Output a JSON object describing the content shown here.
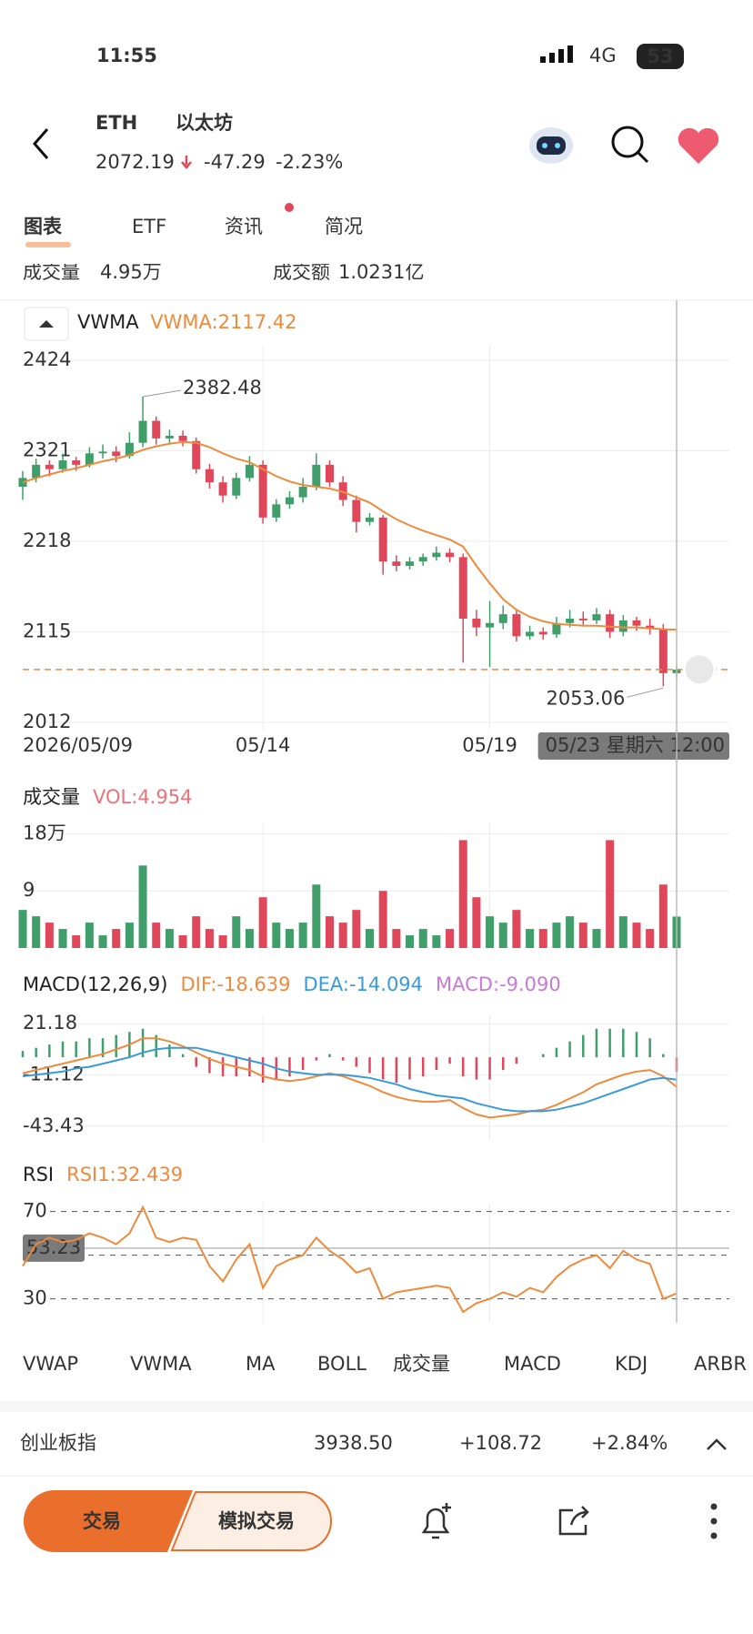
{
  "status_bar": {
    "time": "11:55",
    "network": "4G",
    "battery": "53"
  },
  "header": {
    "symbol": "ETH",
    "name": "以太坊",
    "price": 2072.19,
    "change": -47.29,
    "change_pct": "-2.23%"
  },
  "tabs": [
    "图表",
    "ETF",
    "资讯",
    "简况"
  ],
  "stats": [
    {
      "label": "成交量",
      "value": "4.95万"
    },
    {
      "label": "成交额",
      "value": "1.0231亿"
    }
  ],
  "chart_data": [
    {
      "type": "candlestick",
      "title": "VWMA",
      "up_color": "#3f9e6a",
      "down_color": "#e0475a",
      "categories": [
        "2026/05/09",
        null,
        null,
        null,
        null,
        null,
        null,
        null,
        null,
        null,
        null,
        null,
        null,
        null,
        null,
        null,
        null,
        null,
        "05/14",
        null,
        null,
        null,
        null,
        null,
        null,
        null,
        null,
        null,
        null,
        null,
        null,
        null,
        null,
        null,
        null,
        "05/19",
        null,
        null,
        null,
        null,
        null,
        null,
        null,
        null,
        null,
        null,
        null,
        null,
        null,
        null
      ],
      "open": [
        2280,
        2290,
        2305,
        2300,
        2310,
        2305,
        2318,
        2320,
        2315,
        2330,
        2355,
        2335,
        2338,
        2332,
        2300,
        2285,
        2270,
        2290,
        2305,
        2245,
        2260,
        2268,
        2280,
        2305,
        2285,
        2265,
        2240,
        2245,
        2195,
        2190,
        2195,
        2200,
        2205,
        2200,
        2130,
        2120,
        2125,
        2135,
        2110,
        2115,
        2112,
        2125,
        2130,
        2128,
        2135,
        2115,
        2128,
        2122,
        2118,
        2068
      ],
      "high": [
        2298,
        2312,
        2310,
        2318,
        2314,
        2325,
        2328,
        2326,
        2342,
        2382.48,
        2360,
        2345,
        2344,
        2336,
        2306,
        2292,
        2296,
        2315,
        2310,
        2266,
        2275,
        2290,
        2318,
        2310,
        2292,
        2270,
        2250,
        2248,
        2202,
        2200,
        2204,
        2212,
        2210,
        2204,
        2140,
        2150,
        2145,
        2140,
        2122,
        2120,
        2132,
        2140,
        2138,
        2142,
        2140,
        2134,
        2132,
        2130,
        2124,
        2076
      ],
      "low": [
        2265,
        2285,
        2292,
        2296,
        2298,
        2302,
        2312,
        2308,
        2312,
        2325,
        2328,
        2330,
        2326,
        2295,
        2278,
        2262,
        2266,
        2286,
        2238,
        2240,
        2255,
        2262,
        2276,
        2280,
        2258,
        2228,
        2236,
        2180,
        2184,
        2186,
        2190,
        2196,
        2194,
        2080,
        2110,
        2075,
        2118,
        2104,
        2106,
        2106,
        2108,
        2120,
        2122,
        2124,
        2108,
        2110,
        2116,
        2112,
        2053.06,
        2062
      ],
      "close": [
        2290,
        2305,
        2300,
        2310,
        2305,
        2318,
        2320,
        2315,
        2330,
        2355,
        2335,
        2338,
        2332,
        2300,
        2285,
        2270,
        2290,
        2305,
        2245,
        2260,
        2268,
        2280,
        2305,
        2285,
        2265,
        2240,
        2245,
        2195,
        2190,
        2195,
        2200,
        2205,
        2200,
        2130,
        2120,
        2125,
        2135,
        2110,
        2115,
        2112,
        2125,
        2130,
        2128,
        2135,
        2115,
        2128,
        2122,
        2118,
        2068,
        2072
      ],
      "series": [
        {
          "name": "VWMA:",
          "color": "#ee8a3c",
          "values": [
            2285,
            2290,
            2294,
            2298,
            2301,
            2305,
            2309,
            2312,
            2316,
            2322,
            2326,
            2329,
            2331,
            2330,
            2325,
            2318,
            2312,
            2308,
            2300,
            2292,
            2286,
            2282,
            2280,
            2278,
            2274,
            2268,
            2262,
            2252,
            2243,
            2236,
            2230,
            2225,
            2220,
            2212,
            2190,
            2170,
            2152,
            2140,
            2132,
            2127,
            2124,
            2123,
            2122,
            2122,
            2121,
            2120,
            2120,
            2119,
            2118,
            2117.42
          ]
        }
      ],
      "ylim": [
        2003.7,
        2439.4
      ],
      "yticks": [
        2424,
        2321,
        2218,
        2115,
        2012
      ],
      "crosshair_label": "05/23 星期六 12:00"
    },
    {
      "type": "bar",
      "title": "成交量",
      "series": [
        {
          "name": "VOL:",
          "color": "#e8747c",
          "values": [
            6,
            5,
            4,
            3,
            2,
            4,
            2,
            3,
            4,
            13,
            4,
            3,
            2,
            5,
            3,
            2,
            5,
            3,
            8,
            4,
            3,
            4,
            10,
            5,
            4,
            6,
            3,
            9,
            3,
            2,
            3,
            2,
            3,
            17,
            8,
            5,
            4,
            6,
            3,
            3,
            4,
            5,
            4,
            3,
            17,
            5,
            4,
            3,
            10,
            4.954
          ]
        }
      ],
      "ylim": [
        0,
        19.64
      ],
      "yticks": [
        {
          "value": 18,
          "label": "18万"
        },
        9
      ]
    },
    {
      "type": "macd",
      "title": "MACD(12,26,9)",
      "series": [
        {
          "name": "DIF:",
          "color": "#ee8a3c",
          "values": [
            -10,
            -8,
            -6,
            -4,
            -2,
            0,
            2,
            5,
            8,
            12,
            12,
            10,
            7,
            3,
            -1,
            -4,
            -6,
            -8,
            -12,
            -14,
            -15,
            -14,
            -12,
            -10,
            -12,
            -15,
            -18,
            -22,
            -25,
            -27,
            -28,
            -28,
            -27,
            -32,
            -36,
            -38,
            -37,
            -36,
            -34,
            -33,
            -30,
            -26,
            -22,
            -17,
            -14,
            -11,
            -9,
            -8,
            -12,
            -18.639
          ]
        },
        {
          "name": "DEA:",
          "color": "#3a9ad9",
          "values": [
            -12,
            -11,
            -10,
            -9,
            -7,
            -6,
            -4,
            -2,
            0,
            3,
            5,
            6,
            6,
            6,
            4,
            2,
            0,
            -2,
            -4,
            -7,
            -9,
            -10,
            -11,
            -11,
            -11,
            -12,
            -13,
            -15,
            -17,
            -20,
            -22,
            -24,
            -25,
            -26,
            -29,
            -31,
            -33,
            -34,
            -34,
            -34,
            -33,
            -31,
            -29,
            -26,
            -23,
            -20,
            -17,
            -14,
            -13,
            -14.094
          ]
        },
        {
          "name": "MACD:",
          "color": "#c77bd6",
          "legend_label": "-9.090",
          "values": [
            4,
            6,
            8,
            10,
            10,
            12,
            12,
            14,
            16,
            18,
            14,
            8,
            2,
            -6,
            -10,
            -12,
            -12,
            -12,
            -16,
            -14,
            -12,
            -8,
            -2,
            2,
            -2,
            -6,
            -10,
            -14,
            -16,
            -14,
            -12,
            -8,
            -4,
            -12,
            -14,
            -14,
            -8,
            -4,
            0,
            2,
            6,
            10,
            14,
            18,
            18,
            18,
            16,
            12,
            2,
            -9.09
          ]
        }
      ],
      "ylim": [
        -52.7,
        26.45
      ],
      "yticks": [
        21.18,
        -11.12,
        -43.43
      ]
    },
    {
      "type": "line",
      "title": "RSI",
      "series": [
        {
          "name": "RSI1:",
          "color": "#ee8a3c",
          "values": [
            45,
            55,
            58,
            56,
            57,
            60,
            58,
            55,
            60,
            72,
            58,
            56,
            58,
            57,
            45,
            38,
            48,
            55,
            35,
            45,
            48,
            50,
            58,
            52,
            48,
            42,
            44,
            30,
            33,
            34,
            35,
            36,
            35,
            24,
            28,
            30,
            33,
            31,
            35,
            33,
            40,
            45,
            48,
            50,
            44,
            52,
            48,
            46,
            30,
            32.439
          ]
        }
      ],
      "ylim": [
        19,
        74
      ],
      "yticks": [
        70,
        30
      ],
      "midline": 50,
      "crosshair_value": 53.23
    }
  ],
  "indicator_tabs": [
    "VWAP",
    "VWMA",
    "MA",
    "BOLL",
    "成交量",
    "MACD",
    "KDJ",
    "ARBR"
  ],
  "active_indicators": [
    1,
    4,
    5
  ],
  "ticker": {
    "name": "创业板指",
    "price": "3938.50",
    "change": "+108.72",
    "pct": "+2.84%"
  },
  "actions": {
    "trade": "交易",
    "simulate": "模拟交易"
  }
}
